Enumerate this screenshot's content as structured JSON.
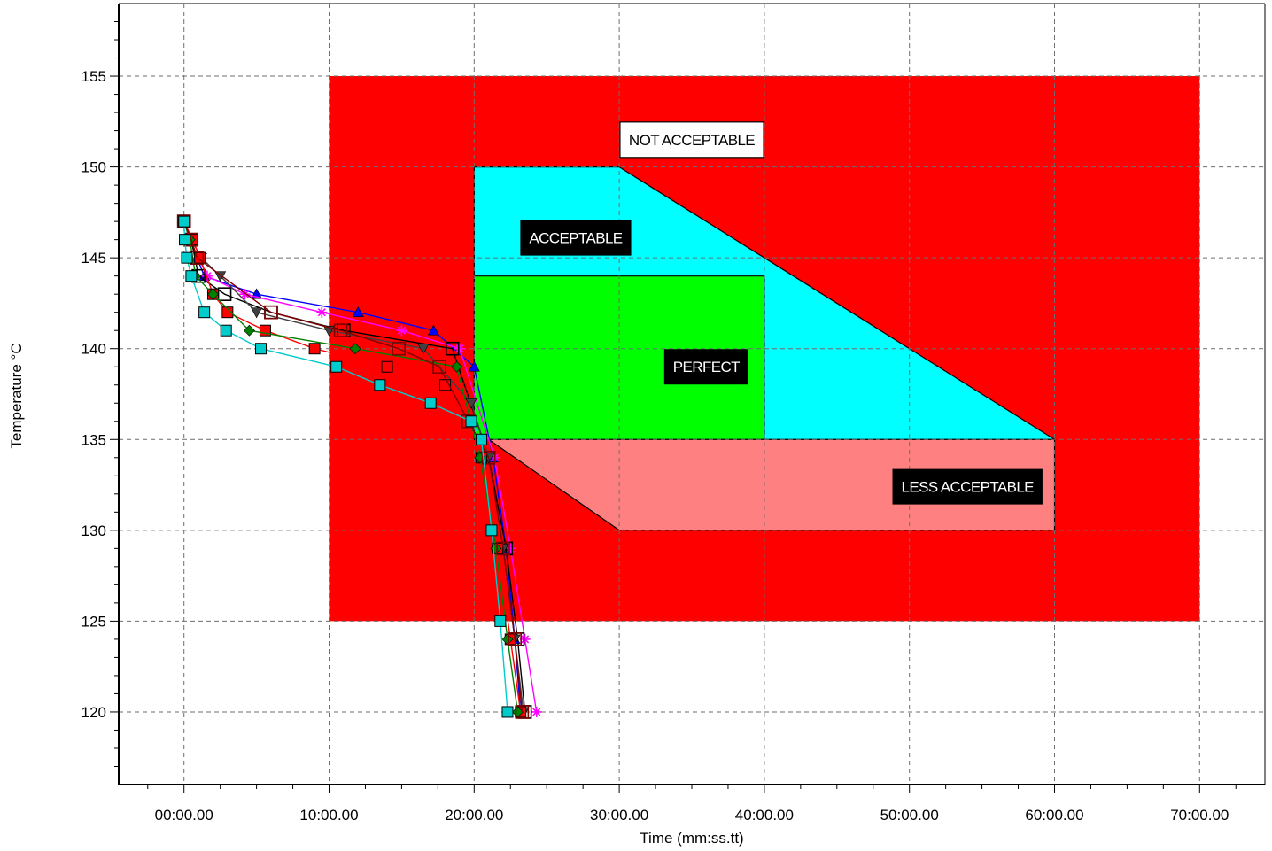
{
  "chart_data": {
    "type": "line",
    "title": "",
    "xlabel": "Time (mm:ss.tt)",
    "ylabel": "Temperature °C",
    "x_unit": "minutes",
    "xlim": [
      -4.5,
      74.5
    ],
    "ylim": [
      116,
      159
    ],
    "x_ticks": [
      0,
      10,
      20,
      30,
      40,
      50,
      60,
      70
    ],
    "x_tick_labels": [
      "00:00.00",
      "10:00.00",
      "20:00.00",
      "30:00.00",
      "40:00.00",
      "50:00.00",
      "60:00.00",
      "70:00.00"
    ],
    "y_ticks": [
      120,
      125,
      130,
      135,
      140,
      145,
      150,
      155
    ],
    "y_tick_labels": [
      "120",
      "125",
      "130",
      "135",
      "140",
      "145",
      "150",
      "155"
    ],
    "grid": true,
    "zones": [
      {
        "name": "NOT ACCEPTABLE",
        "color": "#ff0000",
        "polygon": [
          [
            10,
            125
          ],
          [
            70,
            125
          ],
          [
            70,
            155
          ],
          [
            10,
            155
          ]
        ],
        "label": {
          "x": 35,
          "y": 151.5,
          "style": "light"
        }
      },
      {
        "name": "ACCEPTABLE",
        "color": "#00ffff",
        "polygon": [
          [
            20,
            150
          ],
          [
            30,
            150
          ],
          [
            60,
            135
          ],
          [
            20,
            135
          ]
        ],
        "label": {
          "x": 27,
          "y": 146.1,
          "style": "dark"
        }
      },
      {
        "name": "PERFECT",
        "color": "#00ff00",
        "polygon": [
          [
            20,
            144
          ],
          [
            40,
            144
          ],
          [
            40,
            135
          ],
          [
            20,
            135
          ]
        ],
        "label": {
          "x": 36,
          "y": 139,
          "style": "dark"
        }
      },
      {
        "name": "LESS ACCEPTABLE",
        "color": "#ff8080",
        "polygon": [
          [
            21,
            135
          ],
          [
            60,
            135
          ],
          [
            60,
            130
          ],
          [
            30,
            130
          ]
        ],
        "label": {
          "x": 54,
          "y": 132.4,
          "style": "dark"
        }
      }
    ],
    "series": [
      {
        "color": "#0000ff",
        "marker": "triangle",
        "x": [
          0,
          0.4,
          0.9,
          1.4,
          5,
          12,
          17.2,
          20,
          21.3,
          22.2,
          22.8,
          23.2
        ],
        "y": [
          147,
          146,
          145,
          144,
          143,
          142,
          141,
          139,
          134,
          129,
          124,
          120
        ]
      },
      {
        "color": "#ff00ff",
        "marker": "star",
        "x": [
          0,
          0.4,
          1,
          1.6,
          4.2,
          9.5,
          15,
          19,
          21.4,
          22.5,
          23.5,
          24.3
        ],
        "y": [
          147,
          146,
          145,
          144,
          143,
          142,
          141,
          140,
          134,
          129,
          124,
          120
        ]
      },
      {
        "color": "#000000",
        "marker": "square-open",
        "x": [
          0,
          0.5,
          1,
          2.8,
          6,
          11,
          18.5,
          21,
          22.2,
          23,
          23.5
        ],
        "y": [
          147,
          146,
          144,
          143,
          142,
          141,
          140,
          134,
          129,
          124,
          120
        ]
      },
      {
        "color": "#404040",
        "marker": "triangle-down",
        "x": [
          0,
          0.5,
          1.2,
          2.5,
          5,
          10,
          16.5,
          19.8,
          21,
          22,
          22.8,
          23.4
        ],
        "y": [
          147,
          146,
          145,
          144,
          142,
          141,
          140,
          137,
          134,
          129,
          124,
          120
        ]
      },
      {
        "color": "#ff0000",
        "marker": "square",
        "x": [
          0,
          0.6,
          1.1,
          2,
          3,
          5.6,
          9,
          14,
          18,
          20.5,
          21.6,
          22.5,
          23.2
        ],
        "y": [
          147,
          146,
          145,
          143,
          142,
          141,
          140,
          139,
          138,
          134,
          129,
          124,
          120
        ]
      },
      {
        "color": "#008000",
        "marker": "diamond",
        "x": [
          0,
          0.4,
          0.8,
          2,
          4.5,
          11.8,
          18.8,
          20.4,
          21.5,
          22.3,
          23
        ],
        "y": [
          147,
          146,
          144,
          143,
          141,
          140,
          139,
          134,
          129,
          124,
          120
        ]
      },
      {
        "color": "#800000",
        "marker": "square-open",
        "x": [
          0,
          0.5,
          0.9,
          6,
          10.8,
          14.8,
          17.6,
          19.6,
          21,
          22,
          22.8,
          23.3
        ],
        "y": [
          147,
          146,
          145,
          142,
          141,
          140,
          139,
          136,
          134,
          129,
          124,
          120
        ]
      },
      {
        "color": "#00cccc",
        "marker": "square",
        "x": [
          0,
          0.05,
          0.2,
          0.5,
          1.4,
          2.9,
          5.3,
          10.5,
          13.5,
          17,
          19.8,
          20.5,
          21.2,
          21.8,
          22.3
        ],
        "y": [
          147,
          146,
          145,
          144,
          142,
          141,
          140,
          139,
          138,
          137,
          136,
          135,
          130,
          125,
          120
        ]
      }
    ]
  }
}
